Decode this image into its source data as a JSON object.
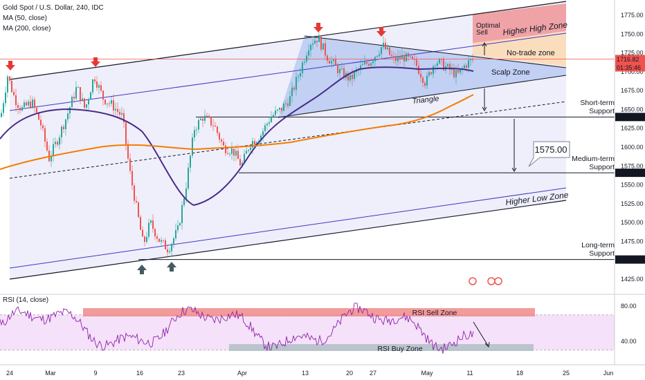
{
  "header": {
    "title": "Gold Spot / U.S. Dollar, 240, IDC",
    "indicators": [
      "MA (50, close)",
      "MA (200, close)"
    ]
  },
  "rsi": {
    "label": "RSI (14, close)",
    "ticks": [
      "80.00",
      "40.00"
    ],
    "sell_zone": "RSI Sell Zone",
    "buy_zone": "RSI Buy Zone"
  },
  "chart_data": {
    "type": "line",
    "price_axis_ticks": [
      1775,
      1750,
      1725,
      1700,
      1675,
      1650,
      1625,
      1600,
      1575,
      1550,
      1525,
      1500,
      1475,
      1450,
      1425
    ],
    "ylim": [
      1405,
      1800
    ],
    "x_ticks": [
      "24",
      "Mar",
      "9",
      "16",
      "23",
      "Apr",
      "13",
      "20",
      "27",
      "May",
      "11",
      "18",
      "25",
      "Jun"
    ],
    "current_price": "1716.82",
    "countdown": "01:35:46",
    "support_labels": {
      "short_term": "1640.00",
      "medium_term": "1566.00",
      "long_term": "1451.00"
    },
    "target_callout": "1575.00",
    "annotations": {
      "optimal_sell": "Optimal Sell",
      "higher_high_zone": "Higher High Zone",
      "no_trade_zone": "No-trade zone",
      "scalp_zone": "Scalp Zone",
      "triangle": "Triangle",
      "short_term_support": "Short-term Support",
      "medium_term_support": "Medium-term Support",
      "long_term_support": "Long-term Support",
      "higher_low_zone": "Higher Low Zone"
    },
    "colors": {
      "up_candle": "#26a69a",
      "down_candle": "#ef5350",
      "ma50": "#4a2a8a",
      "ma200": "#f57c00",
      "channel_fill": "#e8eaf8",
      "triangle_fill": "#a9bff0",
      "sell_zone": "#f08a8a",
      "no_trade": "#fbd9b0",
      "rsi_line": "#8e24aa",
      "rsi_band": "#f3d9f7",
      "marker_down": "#e53935",
      "marker_up": "#455a64"
    }
  }
}
